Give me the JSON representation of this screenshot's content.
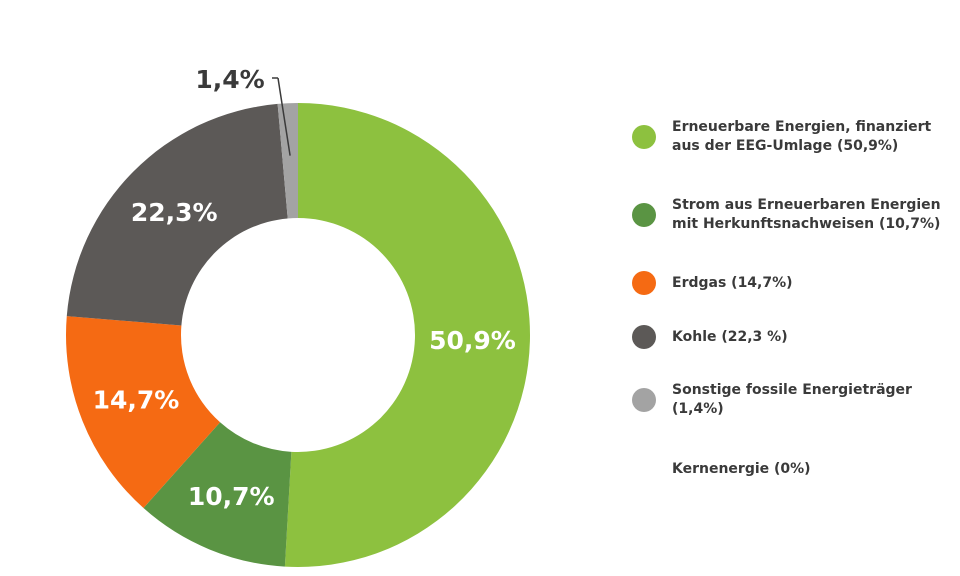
{
  "chart_data": {
    "type": "pie",
    "variant": "donut",
    "slices": [
      {
        "label": "50,9%",
        "value": 50.9,
        "color": "#8dc13f",
        "legend": "Erneuerbare Energien, finanziert aus der EEG-Umlage (50,9%)"
      },
      {
        "label": "10,7%",
        "value": 10.7,
        "color": "#5a9443",
        "legend": "Strom aus Erneuerbaren Energien mit Herkunftsnachweisen (10,7%)"
      },
      {
        "label": "14,7%",
        "value": 14.7,
        "color": "#f56a13",
        "legend": "Erdgas (14,7%)"
      },
      {
        "label": "22,3%",
        "value": 22.3,
        "color": "#5c5957",
        "legend": "Kohle (22,3 %)"
      },
      {
        "label": "1,4%",
        "value": 1.4,
        "color": "#a3a3a3",
        "legend": "Sonstige fossile Energieträger (1,4%)"
      },
      {
        "label": "",
        "value": 0,
        "color": "",
        "legend": "Kernenergie (0%)"
      }
    ],
    "legend_position": "right"
  }
}
